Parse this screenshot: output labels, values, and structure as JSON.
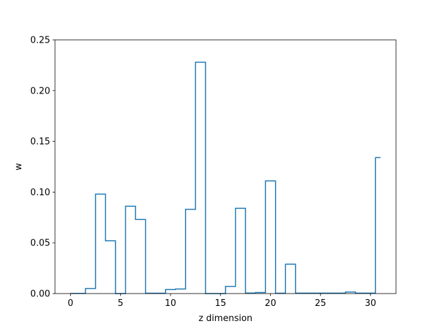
{
  "chart_data": {
    "type": "line",
    "drawstyle": "steps-mid",
    "title": "",
    "xlabel": "z dimension",
    "ylabel": "w",
    "xlim": [
      -1.55,
      32.55
    ],
    "ylim": [
      0,
      0.25
    ],
    "xticks": [
      0,
      5,
      10,
      15,
      20,
      25,
      30
    ],
    "xtick_labels": [
      "0",
      "5",
      "10",
      "15",
      "20",
      "25",
      "30"
    ],
    "yticks": [
      0,
      0.05,
      0.1,
      0.15,
      0.2,
      0.25
    ],
    "ytick_labels": [
      "0.00",
      "0.05",
      "0.10",
      "0.15",
      "0.20",
      "0.25"
    ],
    "grid": false,
    "series": [
      {
        "color": "#1f77b4",
        "x": [
          0,
          1,
          2,
          3,
          4,
          5,
          6,
          7,
          8,
          9,
          10,
          11,
          12,
          13,
          14,
          15,
          16,
          17,
          18,
          19,
          20,
          21,
          22,
          23,
          24,
          25,
          26,
          27,
          28,
          29,
          30,
          31
        ],
        "y": [
          0.0002,
          0.0002,
          0.005,
          0.098,
          0.052,
          0.0,
          0.086,
          0.073,
          0.0003,
          0.0003,
          0.004,
          0.0045,
          0.083,
          0.228,
          0.0,
          0.0,
          0.007,
          0.084,
          0.0005,
          0.001,
          0.111,
          0.0003,
          0.029,
          0.0004,
          0.0004,
          0.0004,
          0.0004,
          0.0004,
          0.0015,
          0.0004,
          0.0004,
          0.134
        ]
      }
    ]
  }
}
